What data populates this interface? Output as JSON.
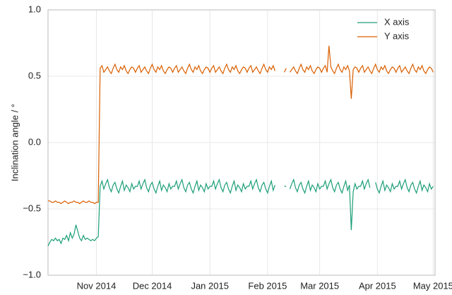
{
  "chart_data": {
    "type": "line",
    "ylabel": "Inclination angle / °",
    "x": [
      5,
      6,
      7,
      8,
      9,
      10,
      11,
      12,
      13,
      14,
      15,
      16,
      17,
      18,
      19,
      20,
      21,
      22,
      23,
      24,
      25,
      26,
      27,
      28,
      29,
      30,
      31,
      32,
      33,
      34,
      35,
      36,
      37,
      38,
      39,
      40,
      41,
      42,
      43,
      44,
      45,
      46,
      47,
      48,
      49,
      50,
      51,
      52,
      53,
      54,
      55,
      56,
      57,
      58,
      59,
      60,
      61,
      62,
      63,
      64,
      65,
      66,
      67,
      68,
      69,
      70,
      71,
      72,
      73,
      74,
      75,
      76,
      77,
      78,
      79,
      80,
      81,
      82,
      83,
      84,
      85,
      86,
      87,
      88,
      89,
      90,
      91,
      92,
      93,
      94,
      95,
      96,
      97,
      98,
      99,
      100,
      101,
      102,
      103,
      104,
      105,
      106,
      107,
      108,
      109,
      110,
      111,
      112,
      113,
      114,
      115,
      116,
      117,
      118,
      119,
      120,
      121,
      122,
      123,
      124,
      125,
      126,
      127,
      128,
      129,
      130,
      131,
      132,
      133,
      134,
      135,
      136,
      137,
      138,
      139,
      140,
      141,
      142,
      143,
      144,
      145,
      146,
      147,
      148,
      149,
      150,
      151,
      152,
      153,
      154,
      155,
      156,
      157,
      158,
      159,
      160,
      161,
      162,
      163,
      164,
      165,
      166,
      167,
      168,
      169,
      170,
      171,
      172,
      173,
      174,
      175,
      176,
      177,
      178,
      179,
      180,
      181,
      182,
      183,
      184,
      185,
      186,
      187,
      188,
      189,
      190,
      191,
      192,
      193,
      194,
      195,
      196,
      197,
      198,
      199,
      200,
      201,
      202,
      203,
      204,
      205,
      206,
      207,
      208,
      209,
      210,
      211,
      212
    ],
    "series": [
      {
        "name": "X axis",
        "color": "#1b9e77",
        "values": [
          -0.78,
          -0.75,
          -0.73,
          -0.74,
          -0.72,
          -0.74,
          -0.73,
          -0.76,
          -0.72,
          -0.73,
          -0.7,
          -0.74,
          -0.68,
          -0.72,
          -0.69,
          -0.62,
          -0.67,
          -0.72,
          -0.74,
          -0.7,
          -0.73,
          -0.72,
          -0.73,
          -0.74,
          -0.73,
          -0.74,
          -0.72,
          -0.71,
          -0.33,
          -0.29,
          -0.35,
          -0.31,
          -0.28,
          -0.34,
          -0.37,
          -0.32,
          -0.3,
          -0.35,
          -0.38,
          -0.33,
          -0.29,
          -0.36,
          -0.32,
          -0.34,
          -0.37,
          -0.31,
          -0.35,
          -0.33,
          -0.33,
          -0.29,
          -0.35,
          -0.31,
          -0.28,
          -0.34,
          -0.37,
          -0.32,
          -0.3,
          -0.35,
          -0.38,
          -0.33,
          -0.29,
          -0.36,
          -0.32,
          -0.34,
          -0.37,
          -0.31,
          -0.35,
          -0.33,
          -0.33,
          -0.29,
          -0.35,
          -0.31,
          -0.28,
          -0.34,
          -0.37,
          -0.32,
          -0.3,
          -0.35,
          -0.38,
          -0.33,
          -0.29,
          -0.36,
          -0.32,
          -0.34,
          -0.37,
          -0.31,
          -0.35,
          -0.33,
          -0.33,
          -0.29,
          -0.35,
          -0.31,
          -0.28,
          -0.34,
          -0.37,
          -0.32,
          -0.3,
          -0.35,
          -0.38,
          -0.33,
          -0.29,
          -0.36,
          -0.32,
          -0.34,
          -0.37,
          -0.31,
          -0.35,
          -0.33,
          -0.33,
          -0.29,
          -0.35,
          -0.31,
          -0.28,
          -0.34,
          -0.37,
          -0.32,
          -0.3,
          -0.35,
          -0.38,
          -0.33,
          -0.29,
          -0.36,
          -0.32,
          null,
          null,
          null,
          null,
          -0.33,
          -0.33,
          null,
          -0.35,
          -0.31,
          -0.28,
          -0.34,
          -0.37,
          -0.32,
          -0.3,
          -0.35,
          -0.38,
          -0.33,
          -0.29,
          -0.36,
          -0.32,
          -0.34,
          -0.37,
          -0.31,
          -0.35,
          -0.33,
          -0.33,
          -0.29,
          -0.35,
          -0.31,
          -0.28,
          -0.34,
          -0.37,
          -0.32,
          -0.3,
          -0.35,
          -0.38,
          -0.33,
          -0.29,
          -0.36,
          -0.32,
          -0.66,
          -0.37,
          -0.31,
          -0.35,
          -0.33,
          -0.33,
          -0.29,
          -0.35,
          -0.31,
          -0.28,
          -0.34,
          null,
          null,
          -0.3,
          -0.35,
          -0.38,
          -0.33,
          -0.29,
          -0.36,
          -0.32,
          -0.34,
          -0.37,
          -0.31,
          -0.35,
          -0.33,
          -0.33,
          -0.29,
          -0.35,
          -0.31,
          -0.28,
          -0.34,
          -0.37,
          -0.32,
          -0.3,
          -0.35,
          -0.38,
          -0.33,
          -0.29,
          -0.36,
          -0.32,
          -0.34,
          -0.37,
          -0.31,
          -0.35,
          -0.33
        ]
      },
      {
        "name": "Y axis",
        "color": "#d95f02",
        "values": [
          -0.44,
          -0.44,
          -0.45,
          -0.45,
          -0.44,
          -0.45,
          -0.45,
          -0.46,
          -0.45,
          -0.44,
          -0.45,
          -0.46,
          -0.45,
          -0.45,
          -0.44,
          -0.45,
          -0.45,
          -0.46,
          -0.45,
          -0.44,
          -0.45,
          -0.45,
          -0.44,
          -0.45,
          -0.45,
          -0.46,
          -0.45,
          -0.45,
          0.56,
          0.58,
          0.53,
          0.55,
          0.57,
          0.54,
          0.52,
          0.56,
          0.59,
          0.55,
          0.53,
          0.57,
          0.55,
          0.58,
          0.54,
          0.52,
          0.55,
          0.57,
          0.56,
          0.53,
          0.56,
          0.58,
          0.53,
          0.55,
          0.57,
          0.54,
          0.52,
          0.56,
          0.59,
          0.55,
          0.53,
          0.57,
          0.55,
          0.58,
          0.54,
          0.52,
          0.55,
          0.57,
          0.56,
          0.53,
          0.56,
          0.58,
          0.53,
          0.55,
          0.57,
          0.54,
          0.52,
          0.56,
          0.59,
          0.55,
          0.53,
          0.57,
          0.55,
          0.58,
          0.54,
          0.52,
          0.55,
          0.57,
          0.56,
          0.53,
          0.56,
          0.58,
          0.53,
          0.55,
          0.57,
          0.54,
          0.52,
          0.56,
          0.59,
          0.55,
          0.53,
          0.57,
          0.55,
          0.58,
          0.54,
          0.52,
          0.55,
          0.57,
          0.56,
          0.53,
          0.56,
          0.58,
          0.53,
          0.55,
          0.57,
          0.54,
          0.52,
          0.56,
          0.59,
          0.55,
          0.53,
          0.57,
          0.55,
          0.58,
          0.54,
          null,
          null,
          null,
          null,
          0.53,
          0.56,
          null,
          0.53,
          0.55,
          0.57,
          0.54,
          0.52,
          0.56,
          0.59,
          0.55,
          0.53,
          0.57,
          0.55,
          0.58,
          0.54,
          0.52,
          0.55,
          0.57,
          0.56,
          0.53,
          0.56,
          0.58,
          0.53,
          0.73,
          0.57,
          0.54,
          0.52,
          0.56,
          0.59,
          0.55,
          0.53,
          0.57,
          0.55,
          0.58,
          0.54,
          0.33,
          0.55,
          0.57,
          0.56,
          0.53,
          0.56,
          0.58,
          0.53,
          0.55,
          0.57,
          0.54,
          0.52,
          0.56,
          0.59,
          0.55,
          0.53,
          0.57,
          0.55,
          0.58,
          0.54,
          0.52,
          0.55,
          0.57,
          0.56,
          0.53,
          0.56,
          0.58,
          0.53,
          0.55,
          0.57,
          0.54,
          0.52,
          0.56,
          0.59,
          0.55,
          0.53,
          0.57,
          0.55,
          0.58,
          0.54,
          0.52,
          0.55,
          0.57,
          0.56,
          0.53
        ]
      }
    ],
    "xlim": [
      5,
      213
    ],
    "xticks": [
      {
        "value": 31,
        "label": "Nov 2014"
      },
      {
        "value": 61,
        "label": "Dec 2014"
      },
      {
        "value": 92,
        "label": "Jan 2015"
      },
      {
        "value": 123,
        "label": "Feb 2015"
      },
      {
        "value": 151,
        "label": "Mar 2015"
      },
      {
        "value": 182,
        "label": "Apr 2015"
      },
      {
        "value": 212,
        "label": "May 2015"
      }
    ],
    "ylim": [
      -1,
      1
    ],
    "yticks": [
      {
        "value": -1,
        "label": "−1.0"
      },
      {
        "value": -0.5,
        "label": "−0.5"
      },
      {
        "value": 0,
        "label": "0.0"
      },
      {
        "value": 0.5,
        "label": "0.5"
      },
      {
        "value": 1,
        "label": "1.0"
      }
    ],
    "grid": true,
    "legend": "upper right"
  }
}
